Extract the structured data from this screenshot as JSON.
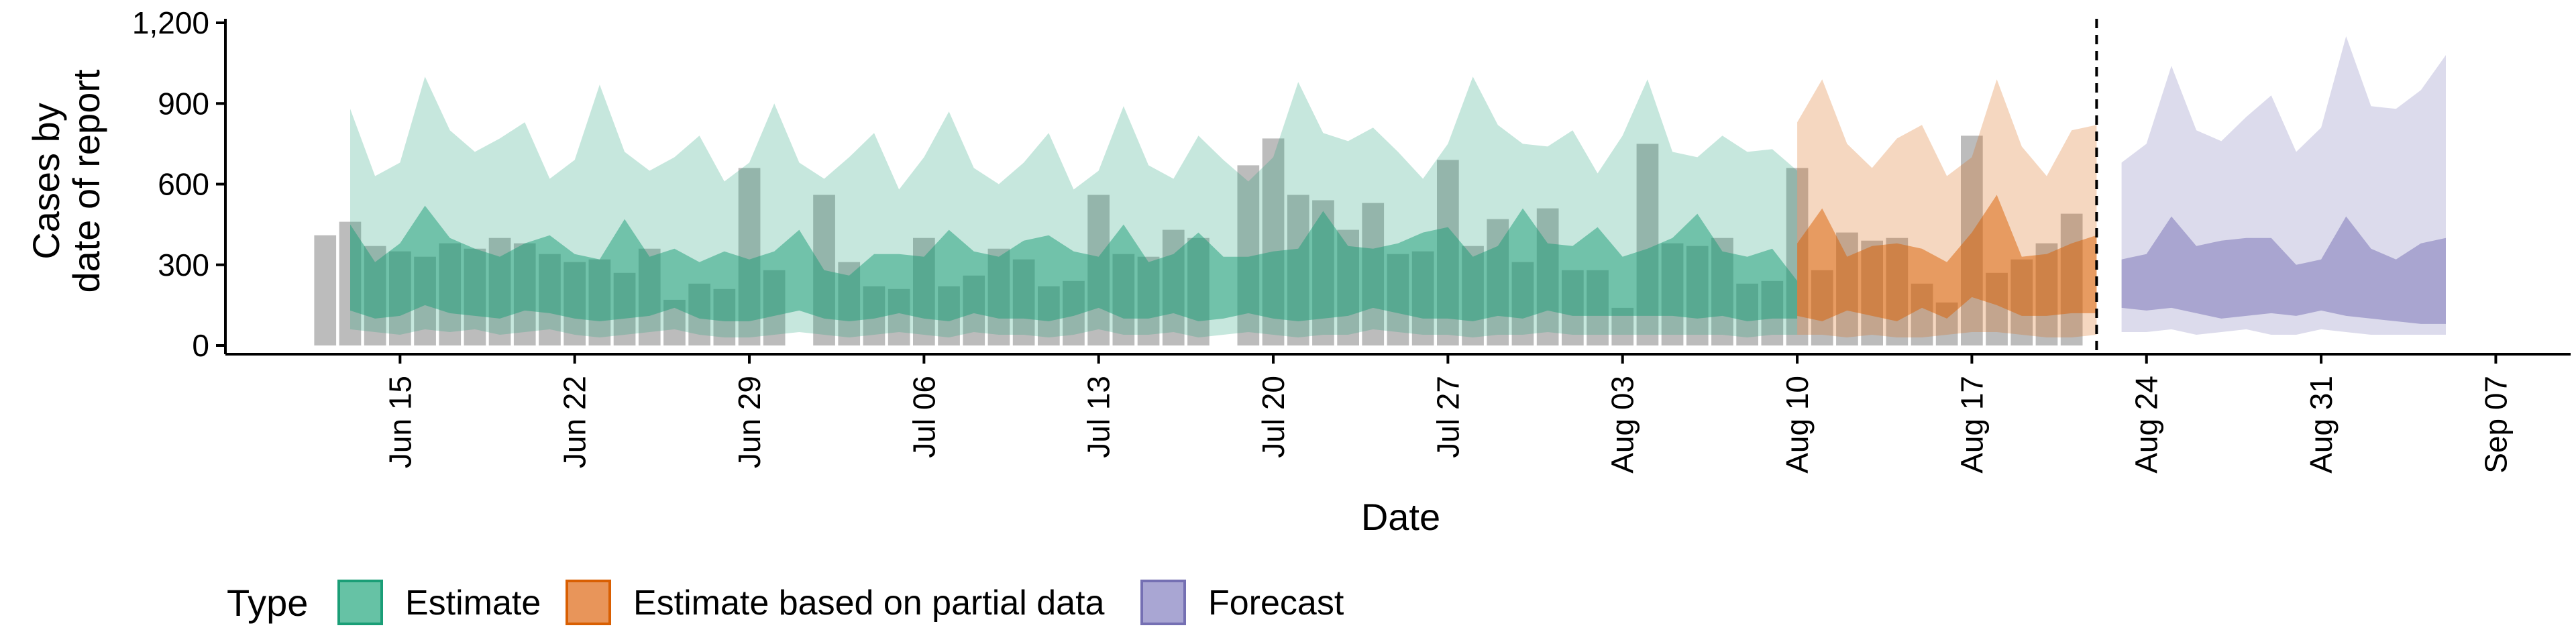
{
  "chart_data": {
    "type": "area",
    "ylabel_lines": [
      "Cases by",
      "date of report"
    ],
    "xlabel": "Date",
    "ylim": [
      0,
      1200
    ],
    "yticks": [
      0,
      300,
      600,
      900,
      1200
    ],
    "ytick_labels": [
      "0",
      "300",
      "600",
      "900",
      "1,200"
    ],
    "xlim": [
      "2020-06-08",
      "2020-09-10"
    ],
    "xticks": [
      "2020-06-15",
      "2020-06-22",
      "2020-06-29",
      "2020-07-06",
      "2020-07-13",
      "2020-07-20",
      "2020-07-27",
      "2020-08-03",
      "2020-08-10",
      "2020-08-17",
      "2020-08-24",
      "2020-08-31",
      "2020-09-07"
    ],
    "xtick_labels": [
      "Jun 15",
      "Jun 22",
      "Jun 29",
      "Jul 06",
      "Jul 13",
      "Jul 20",
      "Jul 27",
      "Aug 03",
      "Aug 10",
      "Aug 17",
      "Aug 24",
      "Aug 31",
      "Sep 07"
    ],
    "report_date": "2020-08-22",
    "legend": {
      "title": "Type",
      "position": "bottom",
      "entries": [
        {
          "label": "Estimate",
          "fill": "#66c2a5",
          "stroke": "#1b9e77"
        },
        {
          "label": "Estimate based on partial data",
          "fill": "#e8955a",
          "stroke": "#d95f02"
        },
        {
          "label": "Forecast",
          "fill": "#a9a6d3",
          "stroke": "#7570b3"
        }
      ]
    },
    "colors": {
      "estimate": "#1b9e77",
      "partial": "#d95f02",
      "forecast": "#7570b3",
      "bars": "#a6a6a6"
    },
    "reported_cases": {
      "start": "2020-06-12",
      "values": [
        410,
        460,
        370,
        350,
        330,
        380,
        360,
        400,
        380,
        340,
        310,
        320,
        270,
        360,
        170,
        230,
        210,
        660,
        280,
        0,
        560,
        310,
        220,
        210,
        400,
        220,
        260,
        360,
        320,
        220,
        240,
        560,
        340,
        330,
        430,
        400,
        0,
        670,
        770,
        560,
        540,
        430,
        530,
        340,
        350,
        690,
        370,
        470,
        310,
        510,
        280,
        280,
        140,
        750,
        380,
        370,
        400,
        230,
        240,
        660,
        280,
        420,
        390,
        400,
        230,
        160,
        780,
        270,
        320,
        380,
        490
      ]
    },
    "series": [
      {
        "name": "Estimate",
        "start": "2020-06-13",
        "outer_lower": [
          60,
          50,
          40,
          60,
          50,
          60,
          40,
          50,
          60,
          40,
          30,
          40,
          50,
          60,
          40,
          30,
          30,
          40,
          50,
          40,
          30,
          40,
          50,
          40,
          30,
          50,
          40,
          40,
          30,
          40,
          60,
          40,
          40,
          50,
          30,
          40,
          50,
          40,
          30,
          40,
          40,
          60,
          50,
          40,
          40,
          30,
          40,
          40,
          50,
          40,
          40,
          40,
          40,
          40,
          40,
          40,
          30,
          40,
          40
        ],
        "inner_lower": [
          130,
          100,
          110,
          150,
          120,
          110,
          100,
          130,
          120,
          100,
          90,
          100,
          110,
          140,
          100,
          90,
          90,
          110,
          130,
          100,
          90,
          100,
          120,
          100,
          90,
          120,
          100,
          100,
          90,
          110,
          140,
          100,
          100,
          120,
          90,
          100,
          120,
          100,
          90,
          100,
          110,
          140,
          120,
          100,
          100,
          90,
          110,
          100,
          130,
          110,
          110,
          110,
          110,
          110,
          100,
          110,
          90,
          100,
          100
        ],
        "inner_upper": [
          450,
          310,
          380,
          520,
          400,
          360,
          330,
          380,
          410,
          340,
          320,
          470,
          330,
          360,
          310,
          350,
          320,
          350,
          430,
          280,
          260,
          340,
          340,
          330,
          430,
          350,
          330,
          390,
          410,
          350,
          330,
          450,
          310,
          340,
          420,
          330,
          330,
          350,
          360,
          500,
          370,
          360,
          380,
          420,
          440,
          330,
          370,
          510,
          380,
          370,
          440,
          330,
          360,
          400,
          490,
          350,
          330,
          360,
          240
        ],
        "outer_upper": [
          880,
          630,
          680,
          1000,
          800,
          720,
          770,
          830,
          620,
          690,
          970,
          720,
          650,
          700,
          780,
          610,
          680,
          900,
          680,
          620,
          700,
          790,
          580,
          700,
          870,
          660,
          600,
          680,
          790,
          580,
          650,
          890,
          670,
          620,
          780,
          690,
          610,
          700,
          980,
          790,
          760,
          810,
          720,
          620,
          750,
          1000,
          820,
          750,
          740,
          800,
          640,
          780,
          990,
          720,
          700,
          780,
          720,
          730,
          650
        ]
      },
      {
        "name": "Estimate based on partial data",
        "start": "2020-08-10",
        "outer_lower": [
          40,
          40,
          30,
          40,
          30,
          30,
          40,
          50,
          50,
          40,
          30,
          30,
          40
        ],
        "inner_lower": [
          110,
          90,
          130,
          110,
          90,
          140,
          100,
          180,
          150,
          110,
          110,
          120,
          120
        ],
        "inner_upper": [
          380,
          510,
          330,
          370,
          380,
          360,
          310,
          420,
          560,
          330,
          340,
          380,
          410
        ],
        "outer_upper": [
          830,
          990,
          750,
          660,
          770,
          820,
          630,
          700,
          990,
          740,
          630,
          800,
          820
        ]
      },
      {
        "name": "Forecast",
        "start": "2020-08-23",
        "outer_lower": [
          50,
          50,
          60,
          40,
          50,
          60,
          40,
          40,
          60,
          50,
          40,
          40,
          40,
          40
        ],
        "inner_lower": [
          140,
          130,
          140,
          120,
          100,
          110,
          120,
          110,
          130,
          110,
          100,
          90,
          80,
          80
        ],
        "inner_upper": [
          320,
          340,
          480,
          370,
          390,
          400,
          400,
          300,
          320,
          480,
          360,
          320,
          380,
          400
        ],
        "outer_upper": [
          680,
          750,
          1040,
          800,
          760,
          850,
          930,
          720,
          810,
          1150,
          890,
          880,
          950,
          1080
        ]
      }
    ]
  }
}
